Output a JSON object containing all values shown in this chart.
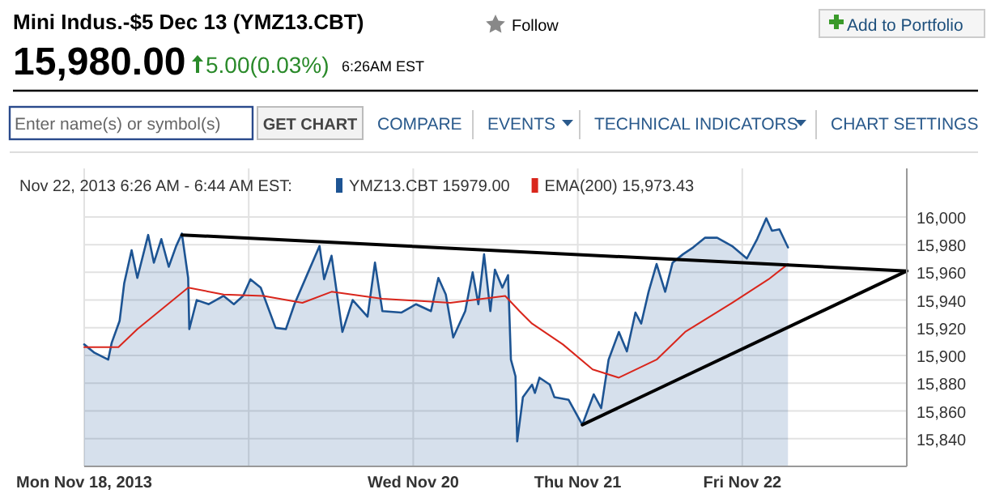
{
  "chart_data": {
    "type": "area",
    "title": "Mini Indus.-$5 Dec 13 (YMZ13.CBT)",
    "annotations": [
      "Follow",
      "Add to Portfolio",
      "15,980.00",
      "5.00(0.03%)",
      "6:26AM EST",
      "Enter name(s) or symbol(s)",
      "GET CHART",
      "COMPARE",
      "EVENTS",
      "TECHNICAL INDICATORS",
      "CHART SETTINGS"
    ],
    "legend_title": "Nov 22, 2013 6:26 AM - 6:44 AM EST:",
    "legend": "top left",
    "grid": true,
    "xlim": [
      "2013-11-18T00:00",
      "2013-11-23T00:00"
    ],
    "xticks": [
      {
        "value": "2013-11-18",
        "label": "Mon Nov 18, 2013"
      },
      {
        "value": "2013-11-19",
        "label": null
      },
      {
        "value": "2013-11-20",
        "label": "Wed Nov 20"
      },
      {
        "value": "2013-11-21",
        "label": "Thu Nov 21"
      },
      {
        "value": "2013-11-22",
        "label": "Fri Nov 22"
      }
    ],
    "ylim": [
      15820,
      16035
    ],
    "yticks": [
      {
        "value": 15840,
        "label": "15,840"
      },
      {
        "value": 15860,
        "label": "15,860"
      },
      {
        "value": 15880,
        "label": "15,880"
      },
      {
        "value": 15900,
        "label": "15,900"
      },
      {
        "value": 15920,
        "label": "15,920"
      },
      {
        "value": 15940,
        "label": "15,940"
      },
      {
        "value": 15960,
        "label": "15,960"
      },
      {
        "value": 15980,
        "label": "15,980"
      },
      {
        "value": 16000,
        "label": "16,000"
      }
    ],
    "series": [
      {
        "type": "area",
        "name": "YMZ13.CBT 15979.00",
        "color": "#1d5493",
        "x": [
          "2013-11-18T00:00",
          "2013-11-18T01:30",
          "2013-11-18T03:30",
          "2013-11-18T04:00",
          "2013-11-18T05:10",
          "2013-11-18T05:50",
          "2013-11-18T06:55",
          "2013-11-18T07:45",
          "2013-11-18T09:20",
          "2013-11-18T10:10",
          "2013-11-18T11:15",
          "2013-11-18T12:20",
          "2013-11-18T13:25",
          "2013-11-18T14:15",
          "2013-11-18T15:10",
          "2013-11-18T15:20",
          "2013-11-18T16:25",
          "2013-11-18T18:10",
          "2013-11-18T20:20",
          "2013-11-18T21:50",
          "2013-11-18T23:10",
          "2013-11-19T00:15",
          "2013-11-19T01:45",
          "2013-11-19T03:55",
          "2013-11-19T05:25",
          "2013-11-19T06:40",
          "2013-11-19T08:40",
          "2013-11-19T10:20",
          "2013-11-19T11:00",
          "2013-11-19T12:05",
          "2013-11-19T13:40",
          "2013-11-19T15:10",
          "2013-11-19T17:20",
          "2013-11-19T18:25",
          "2013-11-19T19:30",
          "2013-11-19T22:15",
          "2013-11-20T00:25",
          "2013-11-20T02:35",
          "2013-11-20T03:40",
          "2013-11-20T04:45",
          "2013-11-20T05:50",
          "2013-11-20T07:35",
          "2013-11-20T08:40",
          "2013-11-20T09:30",
          "2013-11-20T10:20",
          "2013-11-20T11:15",
          "2013-11-20T11:55",
          "2013-11-20T13:00",
          "2013-11-20T13:50",
          "2013-11-20T14:15",
          "2013-11-20T14:55",
          "2013-11-20T15:10",
          "2013-11-20T16:00",
          "2013-11-20T17:20",
          "2013-11-20T17:45",
          "2013-11-20T18:25",
          "2013-11-20T19:55",
          "2013-11-20T20:35",
          "2013-11-20T22:40",
          "2013-11-21T00:40",
          "2013-11-21T02:20",
          "2013-11-21T03:25",
          "2013-11-21T04:30",
          "2013-11-21T06:00",
          "2013-11-21T07:10",
          "2013-11-21T08:25",
          "2013-11-21T09:15",
          "2013-11-21T10:20",
          "2013-11-21T11:30",
          "2013-11-21T12:45",
          "2013-11-21T13:50",
          "2013-11-21T15:20",
          "2013-11-21T16:50",
          "2013-11-21T18:35",
          "2013-11-21T20:20",
          "2013-11-21T22:30",
          "2013-11-22T00:40",
          "2013-11-22T02:10",
          "2013-11-22T03:30",
          "2013-11-22T04:20",
          "2013-11-22T05:25",
          "2013-11-22T06:40"
        ],
        "values": [
          15908,
          15902,
          15897,
          15909,
          15925,
          15952,
          15976,
          15956,
          15987,
          15967,
          15984,
          15964,
          15979,
          15988,
          15956,
          15919,
          15940,
          15937,
          15943,
          15937,
          15943,
          15955,
          15949,
          15920,
          15919,
          15937,
          15960,
          15979,
          15955,
          15972,
          15917,
          15940,
          15928,
          15967,
          15932,
          15931,
          15937,
          15932,
          15956,
          15944,
          15913,
          15932,
          15960,
          15937,
          15973,
          15932,
          15962,
          15949,
          15958,
          15897,
          15885,
          15838,
          15870,
          15879,
          15873,
          15884,
          15879,
          15870,
          15868,
          15850,
          15872,
          15862,
          15897,
          15917,
          15903,
          15931,
          15923,
          15946,
          15966,
          15946,
          15967,
          15973,
          15978,
          15985,
          15985,
          15979,
          15970,
          15984,
          15999,
          15990,
          15991,
          15978
        ]
      },
      {
        "type": "line",
        "name": "EMA(200) 15,973.43",
        "color": "#d9261c",
        "x": [
          "2013-11-18T00:00",
          "2013-11-18T05:00",
          "2013-11-18T07:45",
          "2013-11-18T15:10",
          "2013-11-18T20:20",
          "2013-11-19T02:10",
          "2013-11-19T07:50",
          "2013-11-19T12:05",
          "2013-11-19T19:30",
          "2013-11-20T05:25",
          "2013-11-20T13:25",
          "2013-11-20T15:30",
          "2013-11-20T17:20",
          "2013-11-20T21:50",
          "2013-11-21T02:10",
          "2013-11-21T06:00",
          "2013-11-21T11:30",
          "2013-11-21T15:40",
          "2013-11-21T22:30",
          "2013-11-22T03:50",
          "2013-11-22T06:40"
        ],
        "values": [
          15906,
          15906,
          15919,
          15949,
          15944,
          15943,
          15938,
          15946,
          15941,
          15938,
          15943,
          15932,
          15923,
          15908,
          15890,
          15884,
          15897,
          15917,
          15938,
          15955,
          15966
        ]
      },
      {
        "type": "line",
        "color": "#000000",
        "x": [
          "2013-11-18T14:15",
          "2013-11-23T00:00"
        ],
        "values": [
          15987,
          15961
        ]
      },
      {
        "type": "line",
        "color": "#000000",
        "x": [
          "2013-11-21T00:40",
          "2013-11-23T00:00"
        ],
        "values": [
          15850,
          15961
        ]
      }
    ]
  }
}
